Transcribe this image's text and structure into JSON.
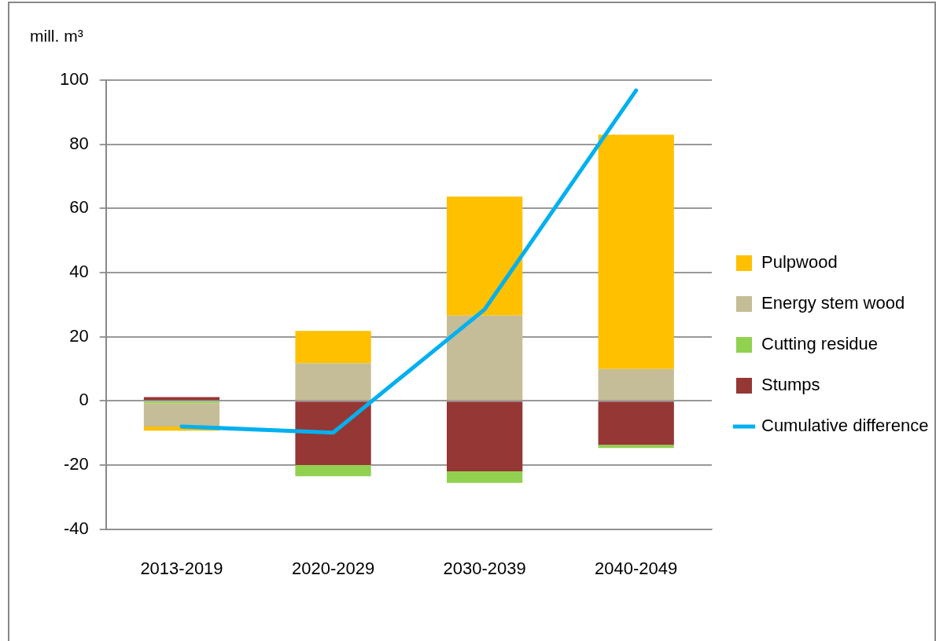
{
  "chart_data": {
    "type": "bar",
    "stacked": true,
    "ylabel": "mill. m³",
    "categories": [
      "2013-2019",
      "2020-2029",
      "2030-2039",
      "2040-2049"
    ],
    "series": [
      {
        "name": "Stumps",
        "color": "#953735",
        "values": [
          1.2,
          -20,
          -22,
          -13.7
        ]
      },
      {
        "name": "Cutting residue",
        "color": "#92d050",
        "values": [
          -0.7,
          -3.5,
          -3.6,
          -1
        ]
      },
      {
        "name": "Energy stem wood",
        "color": "#c4bd97",
        "values": [
          -7.3,
          11.7,
          26.6,
          9.9
        ]
      },
      {
        "name": "Pulpwood",
        "color": "#ffc000",
        "values": [
          -1.3,
          10.1,
          37.1,
          73.1
        ]
      },
      {
        "name": "Cumulative difference",
        "type": "line",
        "color": "#00b0f0",
        "values": [
          -8,
          -9.9,
          28.5,
          96.8
        ]
      }
    ],
    "ylim": [
      -40,
      100
    ],
    "yticks": [
      -40,
      -20,
      0,
      20,
      40,
      60,
      80,
      100
    ],
    "grid": "y",
    "legend": "right",
    "marker": "none",
    "line_style": "solid"
  }
}
